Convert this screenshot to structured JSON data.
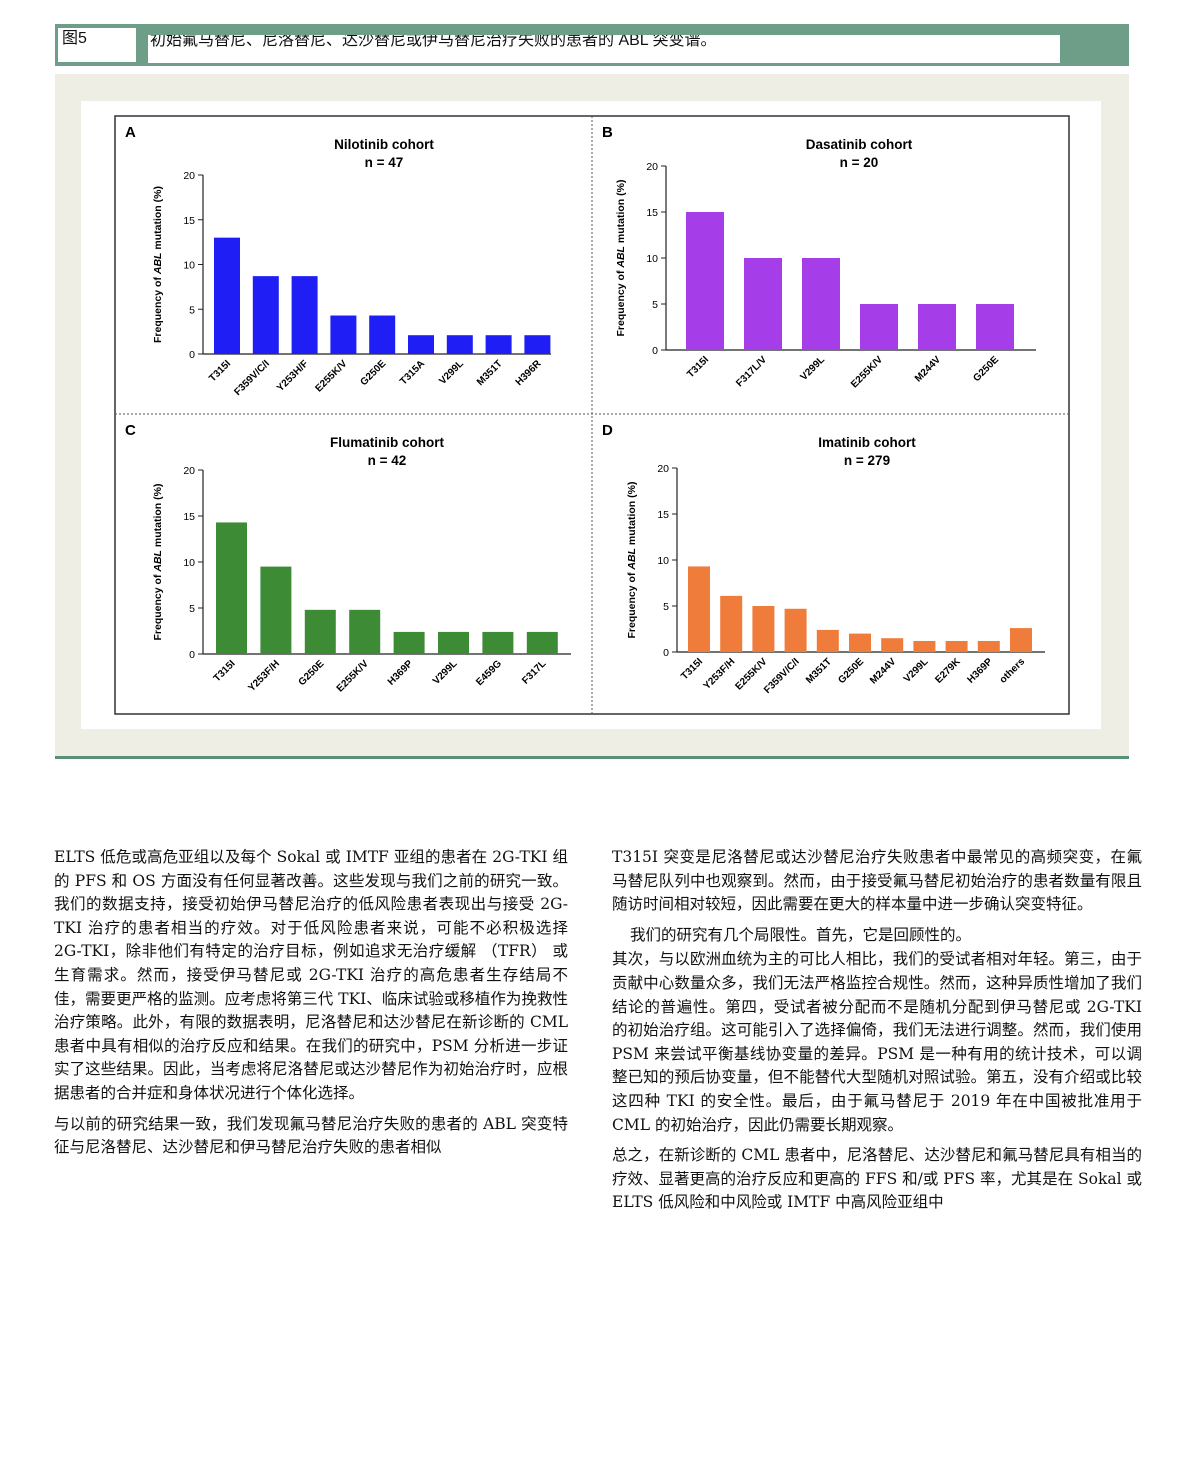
{
  "figure": {
    "label": "图5",
    "caption": "初始氟马替尼、尼洛替尼、达沙替尼或伊马替尼治疗失败的患者的 ABL 突变谱。"
  },
  "chart_data": [
    {
      "type": "bar",
      "panel": "A",
      "title": "Nilotinib cohort",
      "subtitle": "n = 47",
      "ylabel": "Frequency of ABL mutation (%)",
      "ylim": [
        0,
        20
      ],
      "yticks": [
        "0",
        "5",
        "10",
        "15",
        "20"
      ],
      "categories": [
        "T315I",
        "F359V/C/I",
        "Y253H/F",
        "E255K/V",
        "G250E",
        "T315A",
        "V299L",
        "M351T",
        "H396R"
      ],
      "values": [
        13.0,
        8.7,
        8.7,
        4.3,
        4.3,
        2.1,
        2.1,
        2.1,
        2.1
      ],
      "color": "#1f1ff5"
    },
    {
      "type": "bar",
      "panel": "B",
      "title": "Dasatinib cohort",
      "subtitle": "n = 20",
      "ylabel": "Frequency of ABL mutation (%)",
      "ylim": [
        0,
        20
      ],
      "yticks": [
        "0",
        "5",
        "10",
        "15",
        "20"
      ],
      "categories": [
        "T315I",
        "F317L/V",
        "V299L",
        "E255K/V",
        "M244V",
        "G250E"
      ],
      "values": [
        15,
        10,
        10,
        5,
        5,
        5
      ],
      "color": "#a53ee8"
    },
    {
      "type": "bar",
      "panel": "C",
      "title": "Flumatinib cohort",
      "subtitle": "n = 42",
      "ylabel": "Frequency of ABL mutation (%)",
      "ylim": [
        0,
        20
      ],
      "yticks": [
        "0",
        "5",
        "10",
        "15",
        "20"
      ],
      "categories": [
        "T315I",
        "Y253F/H",
        "G250E",
        "E255K/V",
        "H369P",
        "V299L",
        "E459G",
        "F317L"
      ],
      "values": [
        14.3,
        9.5,
        4.8,
        4.8,
        2.4,
        2.4,
        2.4,
        2.4
      ],
      "color": "#3d8c35"
    },
    {
      "type": "bar",
      "panel": "D",
      "title": "Imatinib cohort",
      "subtitle": "n = 279",
      "ylabel": "Frequency of ABL mutation (%)",
      "ylim": [
        0,
        20
      ],
      "yticks": [
        "0",
        "5",
        "10",
        "15",
        "20"
      ],
      "categories": [
        "T315I",
        "Y253F/H",
        "E255K/V",
        "F359V/C/I",
        "M351T",
        "G250E",
        "M244V",
        "V299L",
        "E279K",
        "H369P",
        "others"
      ],
      "values": [
        9.3,
        6.1,
        5.0,
        4.7,
        2.4,
        2.0,
        1.5,
        1.2,
        1.2,
        1.2,
        2.6
      ],
      "color": "#f07c3c"
    }
  ],
  "text": {
    "left": [
      "ELTS 低危或高危亚组以及每个 Sokal 或 IMTF 亚组的患者在 2G-TKI 组的 PFS 和 OS 方面没有任何显著改善。这些发现与我们之前的研究一致。我们的数据支持，接受初始伊马替尼治疗的低风险患者表现出与接受 2G-TKI 治疗的患者相当的疗效。对于低风险患者来说，可能不必积极选择 2G-TKI，除非他们有特定的治疗目标，例如追求无治疗缓解 （TFR） 或生育需求。然而，接受伊马替尼或 2G-TKI 治疗的高危患者生存结局不佳，需要更严格的监测。应考虑将第三代 TKI、临床试验或移植作为挽救性治疗策略。此外，有限的数据表明，尼洛替尼和达沙替尼在新诊断的 CML 患者中具有相似的治疗反应和结果。在我们的研究中，PSM 分析进一步证实了这些结果。因此，当考虑将尼洛替尼或达沙替尼作为初始治疗时，应根据患者的合并症和身体状况进行个体化选择。",
      "与以前的研究结果一致，我们发现氟马替尼治疗失败的患者的 ABL 突变特征与尼洛替尼、达沙替尼和伊马替尼治疗失败的患者相似"
    ],
    "right": [
      "T315I 突变是尼洛替尼或达沙替尼治疗失败患者中最常见的高频突变，在氟马替尼队列中也观察到。然而，由于接受氟马替尼初始治疗的患者数量有限且随访时间相对较短，因此需要在更大的样本量中进一步确认突变特征。",
      "我们的研究有几个局限性。首先，它是回顾性的。",
      "其次，与以欧洲血统为主的可比人相比，我们的受试者相对年轻。第三，由于贡献中心数量众多，我们无法严格监控合规性。然而，这种异质性增加了我们结论的普遍性。第四，受试者被分配而不是随机分配到伊马替尼或 2G-TKI 的初始治疗组。这可能引入了选择偏倚，我们无法进行调整。然而，我们使用 PSM 来尝试平衡基线协变量的差异。PSM 是一种有用的统计技术，可以调整已知的预后协变量，但不能替代大型随机对照试验。第五，没有介绍或比较这四种 TKI 的安全性。最后，由于氟马替尼于 2019 年在中国被批准用于 CML 的初始治疗，因此仍需要长期观察。",
      "总之，在新诊断的 CML 患者中，尼洛替尼、达沙替尼和氟马替尼具有相当的疗效、显著更高的治疗反应和更高的 FFS 和/或 PFS 率，尤其是在 Sokal 或 ELTS 低风险和中风险或 IMTF 中高风险亚组中"
    ]
  }
}
